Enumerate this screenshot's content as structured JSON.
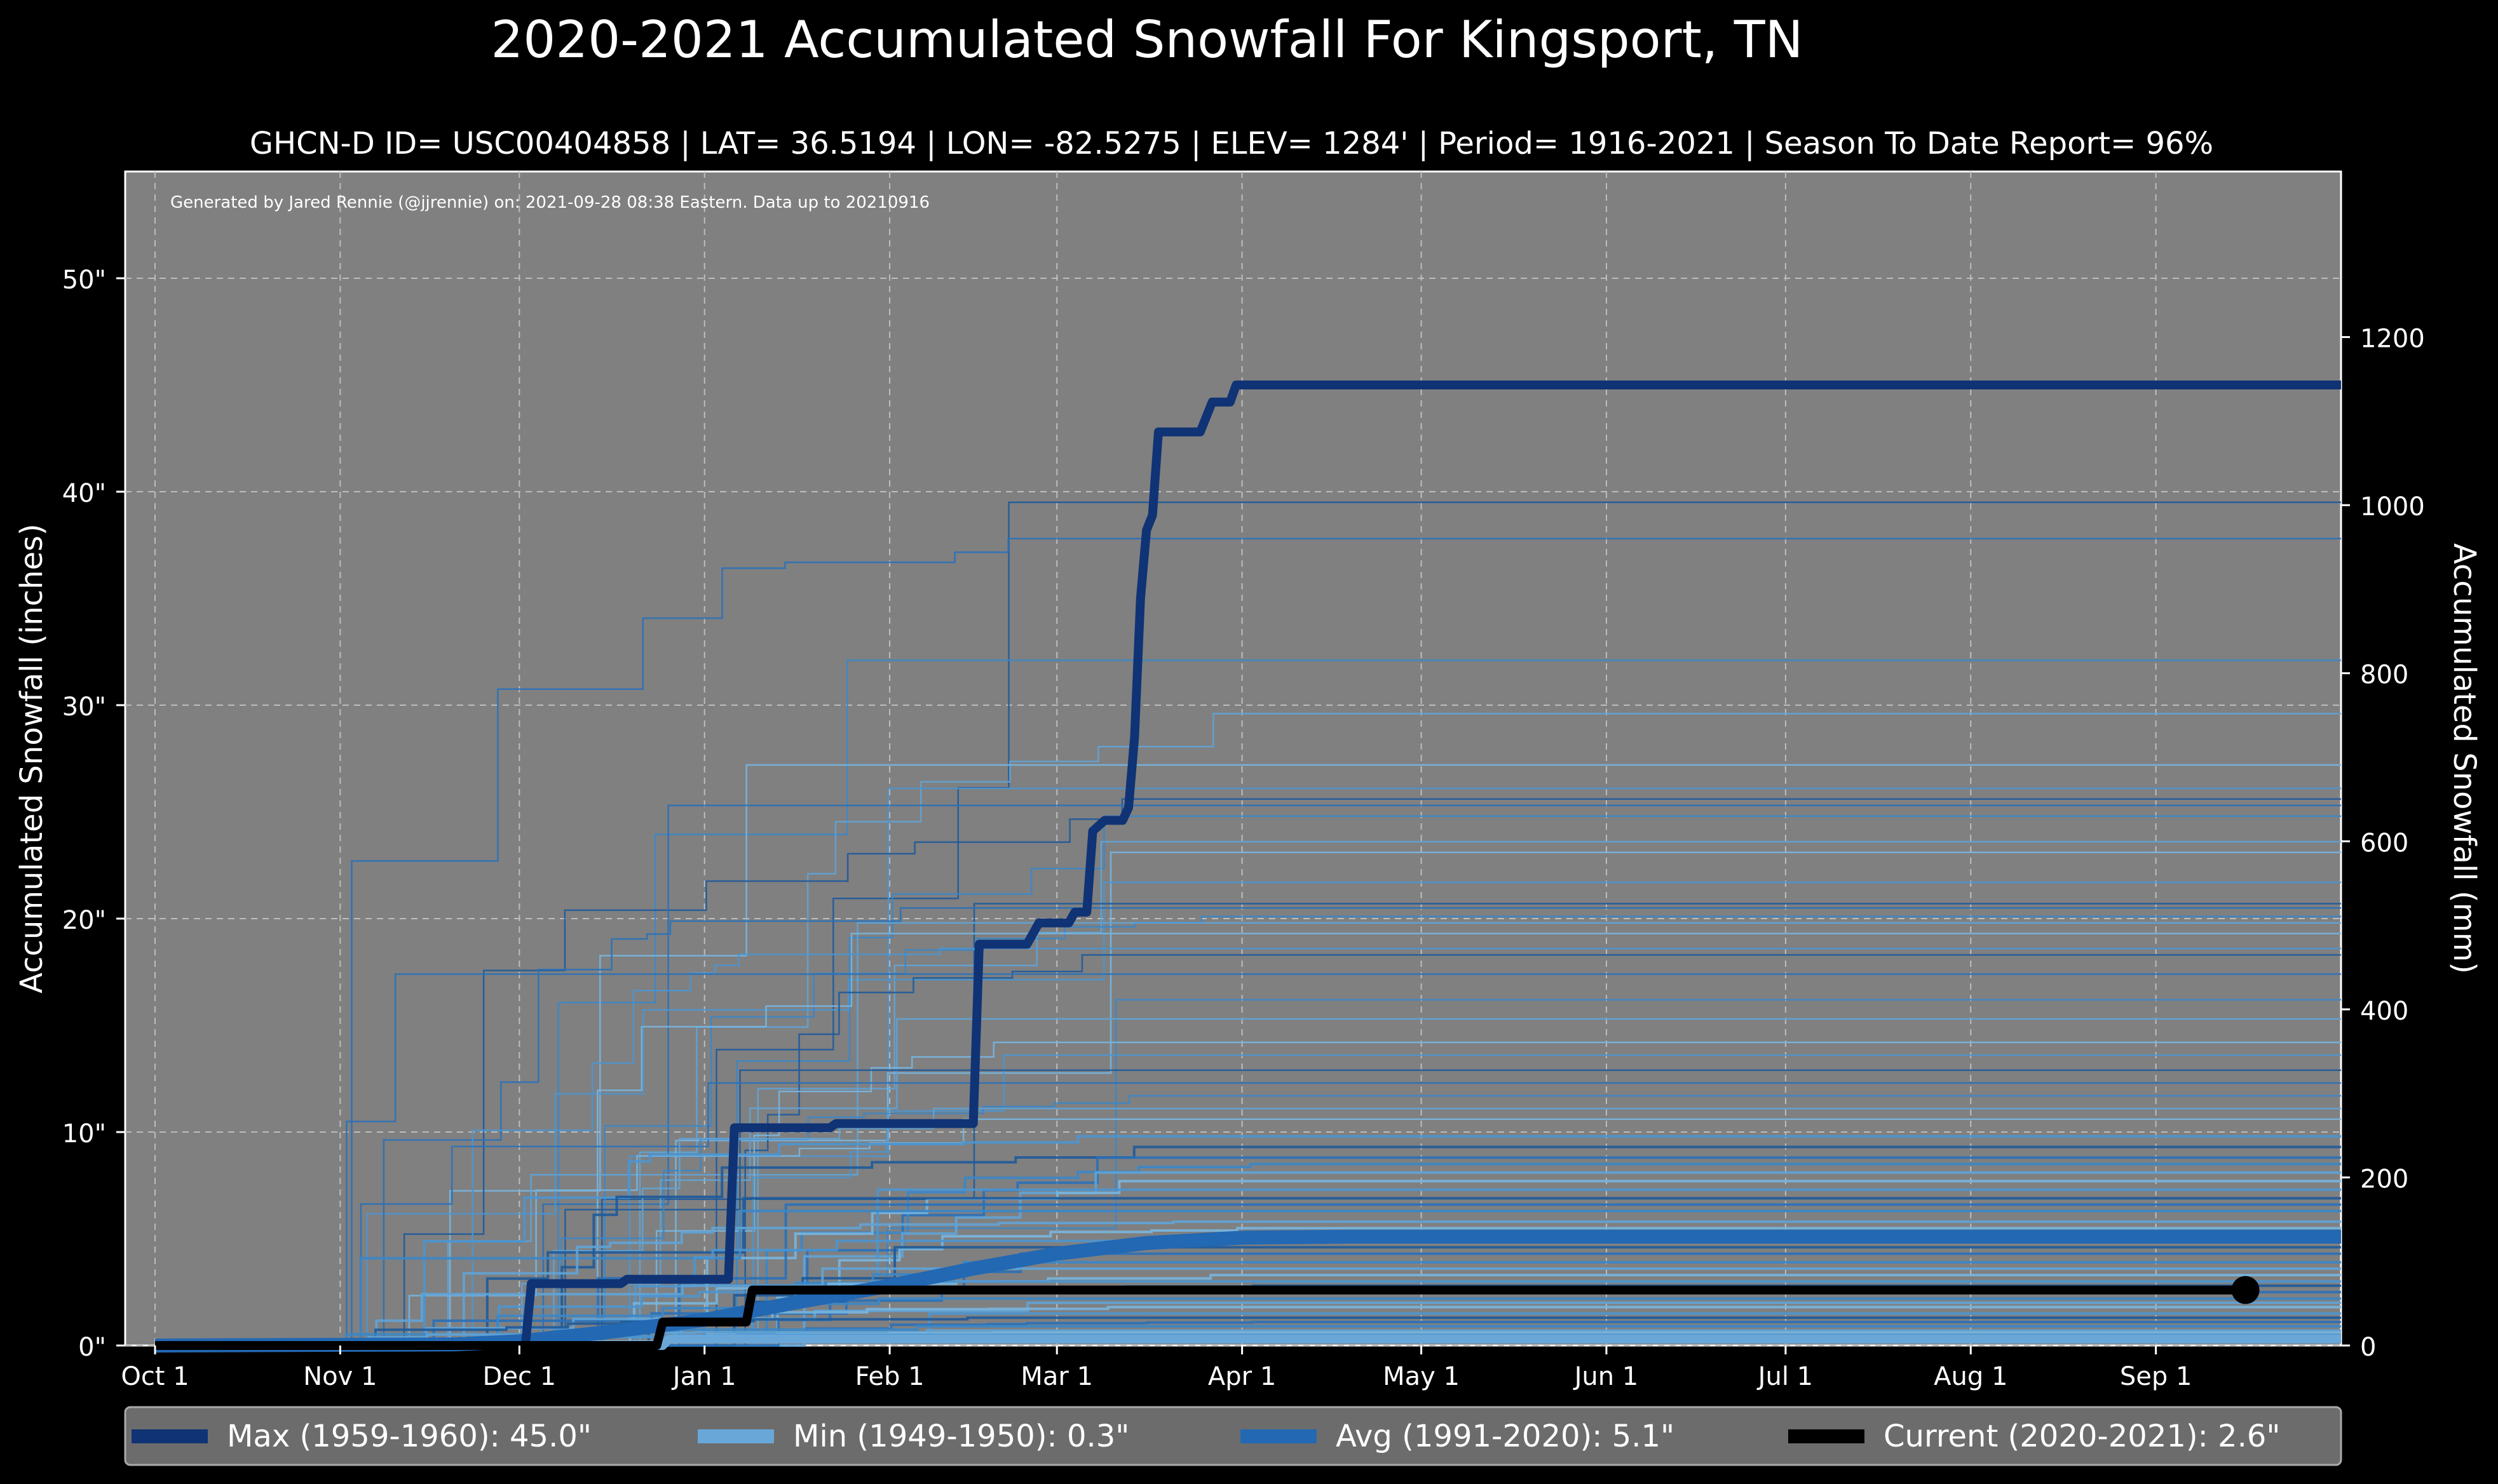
{
  "chart_data": {
    "type": "line",
    "title": "2020-2021 Accumulated Snowfall For Kingsport, TN",
    "subtitle": "GHCN-D ID= USC00404858 | LAT= 36.5194 | LON= -82.5275 | ELEV= 1284' | Period= 1916-2021 | Season To Date Report= 96%",
    "credit": "Generated by Jared Rennie (@jjrennie) on: 2021-09-28 08:38 Eastern. Data up to 20210916",
    "ylabel": "Accumulated Snowfall (inches)",
    "ylabel_right": "Accumulated Snowfall (mm)",
    "x_ticks": [
      "Oct 1",
      "Nov 1",
      "Dec 1",
      "Jan 1",
      "Feb 1",
      "Mar 1",
      "Apr 1",
      "May 1",
      "Jun 1",
      "Jul 1",
      "Aug 1",
      "Sep 1"
    ],
    "x_tick_days": [
      0,
      31,
      61,
      92,
      123,
      151,
      182,
      212,
      243,
      273,
      304,
      335
    ],
    "y_ticks": [
      "0\"",
      "10\"",
      "20\"",
      "30\"",
      "40\"",
      "50\""
    ],
    "y_tick_values": [
      0,
      10,
      20,
      30,
      40,
      50
    ],
    "y_ticks_right": [
      "0",
      "200",
      "400",
      "600",
      "800",
      "1000",
      "1200"
    ],
    "y_tick_values_right_mm": [
      0,
      200,
      400,
      600,
      800,
      1000,
      1200
    ],
    "ylim": [
      0,
      55
    ],
    "xlim_days": [
      -5,
      366
    ],
    "grid": true,
    "legend_position": "bottom",
    "series": [
      {
        "name": "Max (1959-1960):",
        "summary": "45.0\"",
        "color": "#0f3375",
        "points": [
          [
            0,
            0
          ],
          [
            62,
            0
          ],
          [
            63,
            2.9
          ],
          [
            78,
            2.9
          ],
          [
            79,
            3.1
          ],
          [
            96,
            3.1
          ],
          [
            97,
            10.2
          ],
          [
            113,
            10.2
          ],
          [
            114,
            10.4
          ],
          [
            137,
            10.4
          ],
          [
            138,
            18.8
          ],
          [
            146,
            18.8
          ],
          [
            148,
            19.8
          ],
          [
            153,
            19.8
          ],
          [
            154,
            20.3
          ],
          [
            156,
            20.3
          ],
          [
            157,
            24.1
          ],
          [
            159,
            24.6
          ],
          [
            162,
            24.6
          ],
          [
            163,
            25.2
          ],
          [
            164,
            28.5
          ],
          [
            165,
            35
          ],
          [
            166,
            38.2
          ],
          [
            167,
            38.9
          ],
          [
            168,
            42.8
          ],
          [
            175,
            42.8
          ],
          [
            177,
            44.2
          ],
          [
            180,
            44.2
          ],
          [
            181,
            45.0
          ],
          [
            366,
            45.0
          ]
        ]
      },
      {
        "name": "Min (1949-1950):",
        "summary": "0.3\"",
        "color": "#69a7d9",
        "points": [
          [
            0,
            0
          ],
          [
            85,
            0
          ],
          [
            86,
            0.3
          ],
          [
            366,
            0.3
          ]
        ]
      },
      {
        "name": "Avg (1991-2020):",
        "summary": "5.1\"",
        "color": "#2268b3",
        "points": [
          [
            0,
            0
          ],
          [
            50,
            0.05
          ],
          [
            61,
            0.2
          ],
          [
            75,
            0.6
          ],
          [
            92,
            1.2
          ],
          [
            107,
            2.0
          ],
          [
            123,
            2.8
          ],
          [
            137,
            3.6
          ],
          [
            151,
            4.3
          ],
          [
            166,
            4.8
          ],
          [
            182,
            5.05
          ],
          [
            200,
            5.1
          ],
          [
            366,
            5.1
          ]
        ]
      },
      {
        "name": "Current (2020-2021):",
        "summary": "2.6\"",
        "color": "#000000",
        "points": [
          [
            0,
            0
          ],
          [
            84,
            0
          ],
          [
            85,
            1.1
          ],
          [
            99,
            1.1
          ],
          [
            100,
            2.6
          ],
          [
            350,
            2.6
          ]
        ]
      }
    ],
    "current_endpoint": [
      350,
      2.6
    ],
    "other_seasons_final_inches": [
      39.5,
      37.8,
      32.1,
      29.6,
      27.2,
      26.1,
      25.6,
      25.3,
      24.8,
      23.6,
      23.1,
      21.7,
      20.7,
      20.5,
      20.1,
      19.8,
      19.3,
      18.6,
      18.3,
      17.4,
      16.2,
      15.3,
      14.2,
      13.6,
      12.9,
      12.3,
      11.7,
      11.1,
      10.6,
      9.8,
      9.3,
      8.8,
      8.5,
      8.1,
      7.7,
      7.3,
      6.9,
      6.6,
      6.3,
      5.8,
      5.5,
      4.9,
      4.6,
      4.3,
      3.9,
      3.6,
      3.3,
      3.0,
      2.8,
      2.5,
      2.2,
      2.0,
      1.8,
      1.5,
      1.3,
      1.1,
      0.9,
      0.7,
      0.6,
      0.5
    ]
  }
}
